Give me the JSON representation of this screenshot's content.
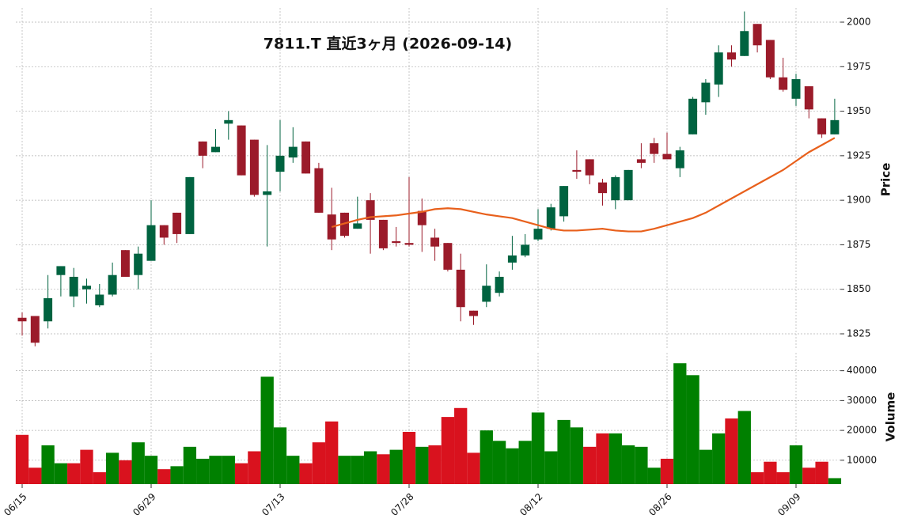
{
  "chart_data": {
    "type": "candlestick",
    "title": "7811.T  直近3ヶ月  (2026-09-14)",
    "ylabel": "Price",
    "categories": [
      "06/15",
      null,
      null,
      null,
      null,
      null,
      null,
      null,
      null,
      null,
      "06/29",
      null,
      null,
      null,
      null,
      null,
      null,
      null,
      null,
      null,
      "07/13",
      null,
      null,
      null,
      null,
      null,
      null,
      null,
      null,
      null,
      "07/28",
      null,
      null,
      null,
      null,
      null,
      null,
      null,
      null,
      null,
      "08/12",
      null,
      null,
      null,
      null,
      null,
      null,
      null,
      null,
      null,
      "08/26",
      null,
      null,
      null,
      null,
      null,
      null,
      null,
      null,
      null,
      "09/09",
      null,
      null,
      null
    ],
    "open": [
      1834,
      1835,
      1832,
      1858,
      1846,
      1850,
      1841,
      1847,
      1872,
      1858,
      1866,
      1886,
      1893,
      1881,
      1933,
      1927,
      1943,
      1942,
      1934,
      1903,
      1916,
      1924,
      1933,
      1918,
      1892,
      1893,
      1884,
      1900,
      1889,
      1877,
      1876,
      1894,
      1879,
      1876,
      1861,
      1838,
      1843,
      1848,
      1865,
      1869,
      1878,
      1884,
      1891,
      1917,
      1923,
      1910,
      1900,
      1900,
      1923,
      1932,
      1926,
      1918,
      1937,
      1955,
      1965,
      1983,
      1981,
      1999,
      1990,
      1969,
      1957,
      1964,
      1946,
      1937
    ],
    "high": [
      1837,
      1835,
      1858,
      1863,
      1862,
      1856,
      1853,
      1865,
      1872,
      1874,
      1900,
      1886,
      1893,
      1913,
      1933,
      1940,
      1950,
      1942,
      1934,
      1931,
      1945,
      1941,
      1933,
      1921,
      1907,
      1893,
      1902,
      1904,
      1889,
      1885,
      1913,
      1901,
      1884,
      1876,
      1870,
      1838,
      1864,
      1860,
      1880,
      1881,
      1895,
      1898,
      1908,
      1928,
      1923,
      1912,
      1914,
      1917,
      1932,
      1935,
      1938,
      1930,
      1958,
      1968,
      1987,
      1987,
      2006,
      1999,
      1990,
      1980,
      1971,
      1964,
      1946,
      1957
    ],
    "low": [
      1824,
      1818,
      1828,
      1846,
      1840,
      1842,
      1840,
      1846,
      1858,
      1850,
      1866,
      1875,
      1876,
      1881,
      1918,
      1927,
      1934,
      1914,
      1902,
      1874,
      1905,
      1921,
      1915,
      1893,
      1872,
      1879,
      1884,
      1870,
      1872,
      1874,
      1874,
      1871,
      1866,
      1860,
      1832,
      1830,
      1840,
      1846,
      1861,
      1868,
      1877,
      1883,
      1888,
      1912,
      1909,
      1897,
      1895,
      1900,
      1918,
      1921,
      1923,
      1913,
      1937,
      1948,
      1958,
      1975,
      1981,
      1983,
      1968,
      1961,
      1953,
      1946,
      1935,
      1937
    ],
    "close": [
      1832,
      1820,
      1845,
      1863,
      1857,
      1852,
      1847,
      1858,
      1857,
      1870,
      1886,
      1879,
      1881,
      1913,
      1925,
      1930,
      1945,
      1914,
      1903,
      1905,
      1925,
      1930,
      1915,
      1893,
      1878,
      1880,
      1887,
      1889,
      1873,
      1876,
      1875,
      1886,
      1874,
      1861,
      1840,
      1835,
      1852,
      1857,
      1869,
      1875,
      1884,
      1896,
      1908,
      1916,
      1914,
      1904,
      1913,
      1917,
      1921,
      1926,
      1923,
      1928,
      1957,
      1966,
      1983,
      1979,
      1995,
      1987,
      1969,
      1962,
      1968,
      1951,
      1937,
      1945
    ],
    "up_color": "#006340",
    "down_color": "#9b1b2a",
    "ma": {
      "color": "#e8601c",
      "values": [
        null,
        null,
        null,
        null,
        null,
        null,
        null,
        null,
        null,
        null,
        null,
        null,
        null,
        null,
        null,
        null,
        null,
        null,
        null,
        null,
        null,
        null,
        null,
        null,
        1885,
        1887,
        1889,
        1890.5,
        1891,
        1891.5,
        1892.5,
        1893.5,
        1895,
        1895.5,
        1895,
        1893.5,
        1892,
        1891,
        1890,
        1888,
        1886,
        1884,
        1883,
        1883,
        1883.5,
        1884,
        1883,
        1882.5,
        1882.5,
        1884,
        1886,
        1888,
        1890,
        1893,
        1897,
        1901,
        1905,
        1909,
        1913,
        1917,
        1922,
        1927,
        1931,
        1935
      ]
    },
    "ylim": [
      1817,
      2008
    ],
    "yticks": [
      1825,
      1850,
      1875,
      1900,
      1925,
      1950,
      1975,
      2000
    ],
    "grid": true,
    "volume": {
      "ylabel": "Volume",
      "up_color": "#008000",
      "down_color": "#d9121e",
      "ylim": [
        2000,
        46000
      ],
      "yticks": [
        10000,
        20000,
        30000,
        40000
      ],
      "values": [
        18500,
        7500,
        15000,
        9000,
        9000,
        13500,
        6000,
        12500,
        10000,
        16000,
        11500,
        7000,
        8000,
        14500,
        10500,
        11500,
        11500,
        9000,
        13000,
        38000,
        21000,
        11500,
        9000,
        16000,
        23000,
        11500,
        11500,
        13000,
        12000,
        13500,
        19500,
        14500,
        15000,
        24500,
        27500,
        12500,
        20000,
        16500,
        14000,
        16500,
        26000,
        13000,
        23500,
        21000,
        14500,
        19000,
        19000,
        15000,
        14500,
        7500,
        10500,
        42500,
        38500,
        13500,
        19000,
        24000,
        26500,
        6000,
        9500,
        6000,
        15000,
        7500,
        9500,
        4000
      ]
    }
  }
}
